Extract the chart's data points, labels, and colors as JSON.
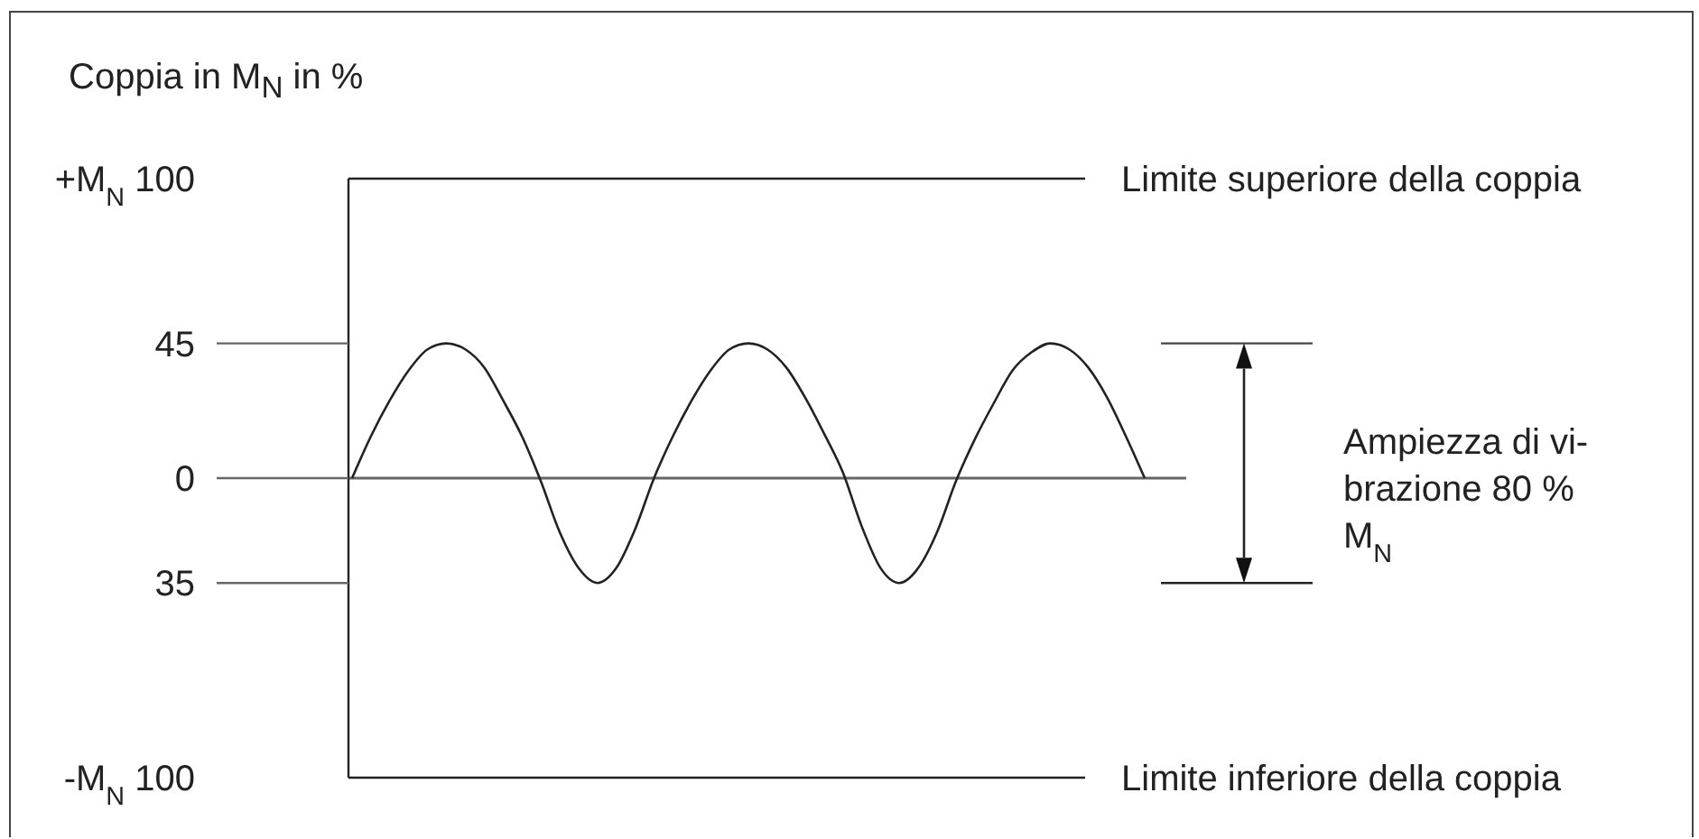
{
  "chart_data": {
    "type": "line",
    "ylabel": "Coppia in M$_{N}$ in %",
    "categories": [
      null,
      null,
      null,
      null,
      null,
      null,
      null,
      null,
      null,
      null,
      null,
      null,
      null,
      null,
      null,
      null,
      null,
      null,
      null,
      null,
      null,
      null,
      null,
      null,
      null,
      null,
      null,
      null,
      null,
      null,
      null,
      null,
      null,
      null,
      null,
      null,
      null,
      null,
      null,
      null,
      null,
      null,
      null
    ],
    "values": [
      0,
      14,
      26,
      36,
      43,
      45,
      43,
      37,
      26,
      14,
      -1,
      -18,
      -30,
      -35,
      -30,
      -17,
      0,
      14,
      26,
      36,
      43,
      45,
      43,
      37,
      27,
      15,
      2,
      -16,
      -30,
      -35,
      -30,
      -18,
      -1,
      13,
      25,
      36,
      42,
      45,
      43,
      37,
      27,
      14,
      0
    ],
    "color": "#222222",
    "ylim": [
      -100,
      100
    ],
    "yticks": [
      {
        "value": 100,
        "label": "+M$_{N}$ 100"
      },
      45,
      0,
      {
        "value": -35,
        "label": "35"
      },
      {
        "value": -100,
        "label": "-M$_{N}$ 100"
      }
    ],
    "ref_lines": [
      {
        "axis": "y",
        "value": 100,
        "label": "Limite superiore della coppia",
        "color": "#222222"
      },
      {
        "axis": "y",
        "value": -100,
        "label": "Limite inferiore della coppia",
        "color": "#222222"
      }
    ],
    "annotations": [
      "Ampiezza di vi-\nbrazione 80 %\nM$_{N}$"
    ],
    "tick_labels": "y"
  }
}
